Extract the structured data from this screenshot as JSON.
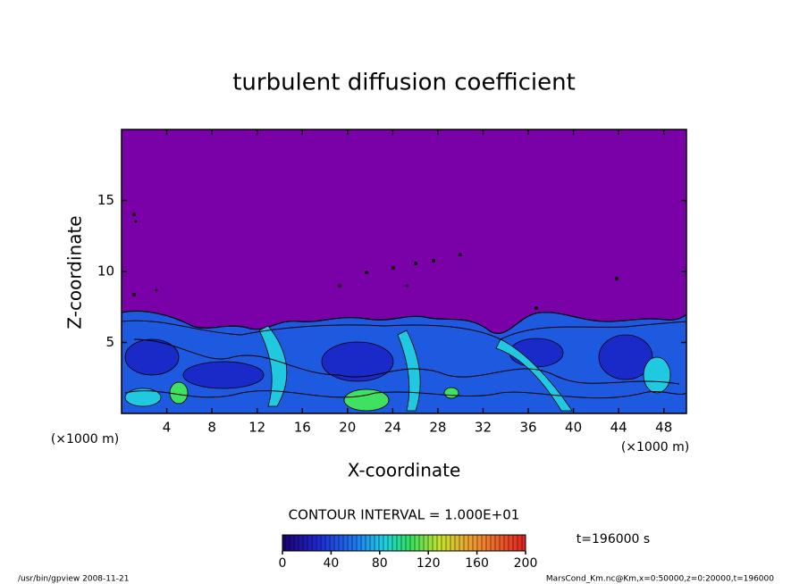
{
  "chart_data": {
    "type": "contour",
    "title": "turbulent diffusion coefficient",
    "x_label": "X-coordinate",
    "y_label": "Z-coordinate",
    "x_unit": "(×1000 m)",
    "y_unit": "(×1000 m)",
    "xlim": [
      0,
      50
    ],
    "xticks": [
      4,
      8,
      12,
      16,
      20,
      24,
      28,
      32,
      36,
      40,
      44,
      48
    ],
    "ylim": [
      0,
      20
    ],
    "yticks": [
      5,
      10,
      15
    ],
    "contour_interval": "CONTOUR INTERVAL = 1.000E+01",
    "colorbar": {
      "lim": [
        0,
        200
      ],
      "ticks": [
        0,
        40,
        80,
        120,
        160,
        200
      ]
    },
    "time_label": "t=196000 s"
  },
  "footer": {
    "left": "/usr/bin/gpview  2008-11-21",
    "right": "MarsCond_Km.nc@Km,x=0:50000,z=0:20000,t=196000"
  }
}
